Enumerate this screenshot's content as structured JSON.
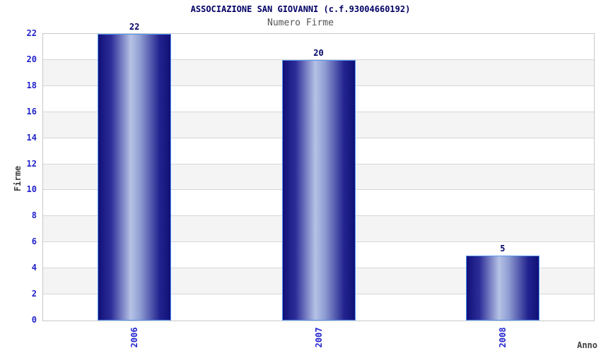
{
  "chart_data": {
    "type": "bar",
    "title": "ASSOCIAZIONE SAN GIOVANNI (c.f.93004660192)",
    "subtitle": "Numero Firme",
    "xlabel": "Anno",
    "ylabel": "Firme",
    "categories": [
      "2006",
      "2007",
      "2008"
    ],
    "values": [
      22,
      20,
      5
    ],
    "value_labels": [
      "22",
      "20",
      "5"
    ],
    "ylim": [
      0,
      22
    ],
    "yticks": [
      0,
      2,
      4,
      6,
      8,
      10,
      12,
      14,
      16,
      18,
      20,
      22
    ],
    "grid": "horizontal gridlines with alternating white/gray bands",
    "legend_position": "none",
    "colors": {
      "bar_dark": "#101078",
      "bar_mid": "#2e2e99",
      "bar_light": "#b6c2e5",
      "bar_shade": "#8f9ed3",
      "bar_border": "#5697f2",
      "tick_label": "#2222cc",
      "value_label": "#000066",
      "title": "#000066",
      "subtitle": "#555555",
      "axis_label": "#404040",
      "band_gray": "#f4f4f4",
      "band_white": "#ffffff",
      "gridline": "#d6d6d6",
      "plot_border": "#c8c8c8"
    }
  }
}
